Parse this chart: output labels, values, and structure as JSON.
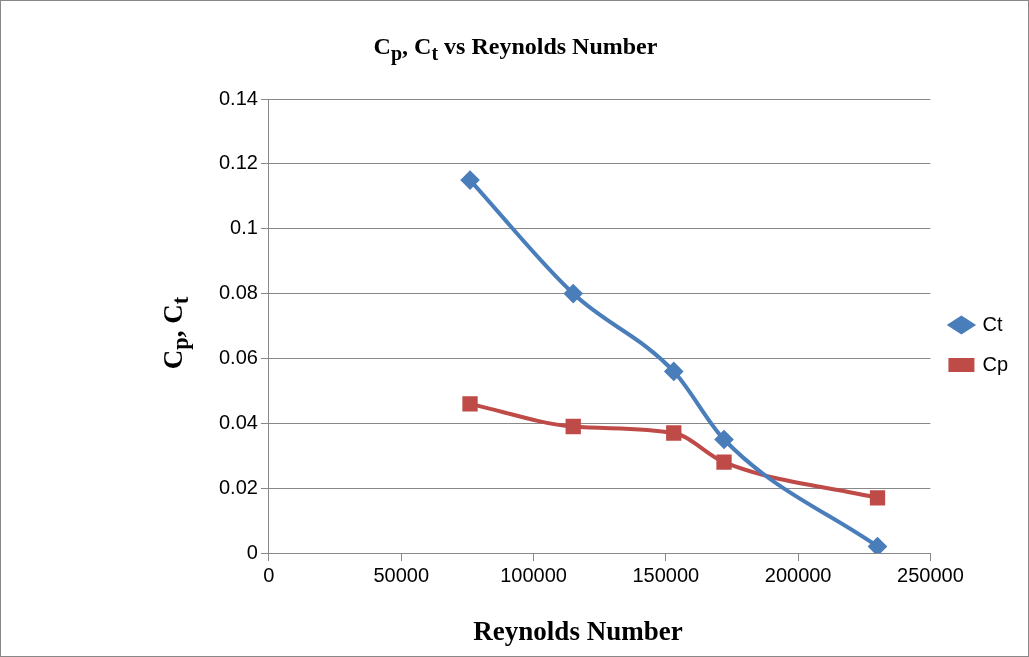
{
  "chart_data": {
    "type": "line",
    "title": "C$_{p}$, C$_{t}$ vs Reynolds Number",
    "xlabel": "Reynolds Number",
    "ylabel": "C$_{p}$, C$_{t}$",
    "x": [
      76000,
      115000,
      153000,
      172000,
      230000
    ],
    "series": [
      {
        "name": "Ct",
        "color": "#4a7ebb",
        "marker": "diamond",
        "values": [
          0.115,
          0.08,
          0.056,
          0.035,
          0.002
        ]
      },
      {
        "name": "Cp",
        "color": "#be4b48",
        "marker": "square",
        "values": [
          0.046,
          0.039,
          0.037,
          0.028,
          0.017
        ]
      }
    ],
    "xlim": [
      0,
      250000
    ],
    "xticks": [
      0,
      50000,
      100000,
      150000,
      200000,
      250000
    ],
    "ylim": [
      0,
      0.14
    ],
    "yticks": [
      0,
      0.02,
      0.04,
      0.06,
      0.08,
      0.1,
      0.12,
      0.14
    ],
    "grid": "y",
    "legend": "right",
    "line_style": "solid"
  }
}
